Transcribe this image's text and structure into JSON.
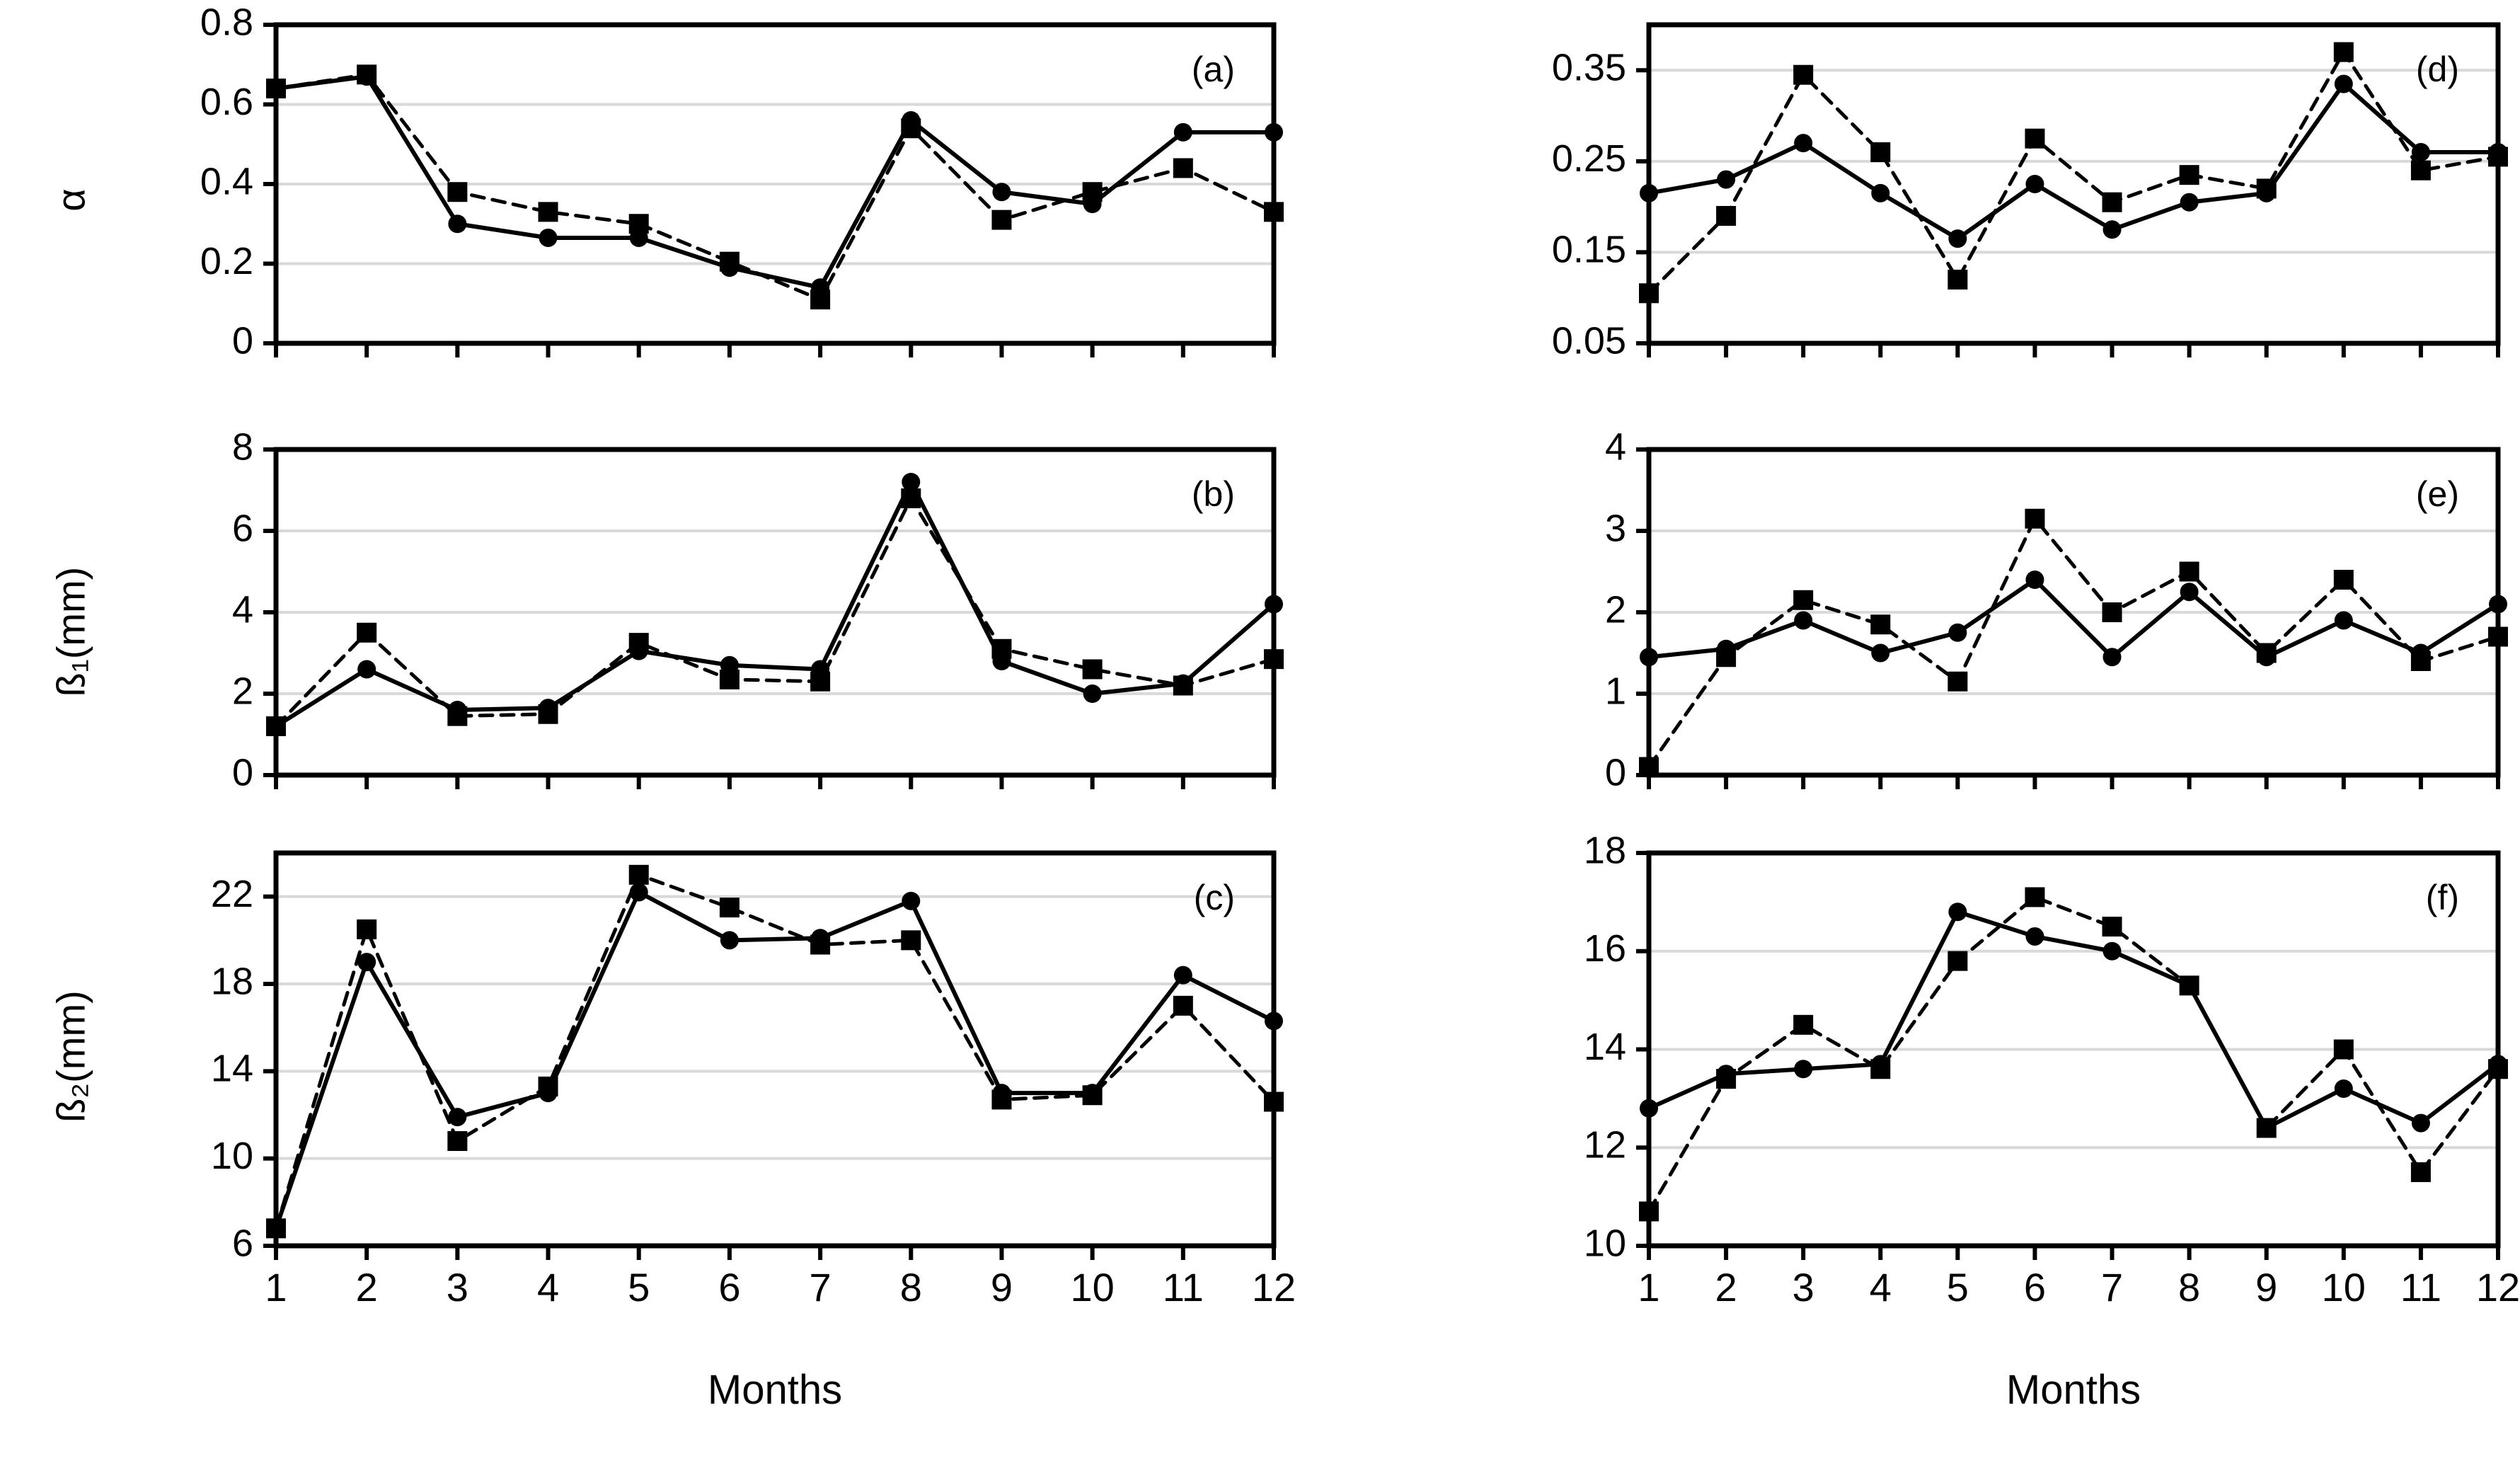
{
  "figure_background": "#ffffff",
  "colors": {
    "line": "#000000",
    "grid": "#d9d9d9",
    "frame": "#000000",
    "text": "#000000"
  },
  "chart_data": [
    {
      "id": "a",
      "type": "line",
      "annotation": "(a)",
      "ylabel": "α",
      "xlabel": "",
      "show_x_labels": false,
      "categories": [
        1,
        2,
        3,
        4,
        5,
        6,
        7,
        8,
        9,
        10,
        11,
        12
      ],
      "ylim": [
        0,
        0.8
      ],
      "ytick_values": [
        0,
        0.2,
        0.4,
        0.6,
        0.8
      ],
      "ytick_labels": [
        "0",
        "0.2",
        "0.4",
        "0.6",
        "0.8"
      ],
      "gridlines": [
        0.2,
        0.4,
        0.6
      ],
      "grid": "on",
      "legend": "none",
      "series": [
        {
          "name": "solid-circle",
          "line": "solid",
          "marker": "circle",
          "values": [
            0.64,
            0.67,
            0.3,
            0.265,
            0.265,
            0.19,
            0.14,
            0.56,
            0.38,
            0.35,
            0.53,
            0.53
          ]
        },
        {
          "name": "dashed-square",
          "line": "dashed",
          "marker": "square",
          "values": [
            0.64,
            0.675,
            0.38,
            0.33,
            0.3,
            0.205,
            0.11,
            0.54,
            0.31,
            0.38,
            0.44,
            0.33
          ]
        }
      ]
    },
    {
      "id": "d",
      "type": "line",
      "annotation": "(d)",
      "ylabel": "",
      "xlabel": "",
      "show_x_labels": false,
      "categories": [
        1,
        2,
        3,
        4,
        5,
        6,
        7,
        8,
        9,
        10,
        11,
        12
      ],
      "ylim": [
        0.05,
        0.4
      ],
      "ytick_values": [
        0.05,
        0.15,
        0.25,
        0.35
      ],
      "ytick_labels": [
        "0.05",
        "0.15",
        "0.25",
        "0.35"
      ],
      "gridlines": [
        0.15,
        0.25,
        0.35
      ],
      "grid": "on",
      "legend": "none",
      "series": [
        {
          "name": "solid-circle",
          "line": "solid",
          "marker": "circle",
          "values": [
            0.215,
            0.23,
            0.27,
            0.215,
            0.165,
            0.225,
            0.175,
            0.205,
            0.215,
            0.335,
            0.26,
            0.26
          ]
        },
        {
          "name": "dashed-square",
          "line": "dashed",
          "marker": "square",
          "values": [
            0.105,
            0.19,
            0.345,
            0.26,
            0.12,
            0.275,
            0.205,
            0.235,
            0.22,
            0.37,
            0.24,
            0.255
          ]
        }
      ]
    },
    {
      "id": "b",
      "type": "line",
      "annotation": "(b)",
      "ylabel": "ß₁(mm)",
      "xlabel": "",
      "show_x_labels": false,
      "categories": [
        1,
        2,
        3,
        4,
        5,
        6,
        7,
        8,
        9,
        10,
        11,
        12
      ],
      "ylim": [
        0,
        8
      ],
      "ytick_values": [
        0,
        2,
        4,
        6,
        8
      ],
      "ytick_labels": [
        "0",
        "2",
        "4",
        "6",
        "8"
      ],
      "gridlines": [
        2,
        4,
        6
      ],
      "grid": "on",
      "legend": "none",
      "series": [
        {
          "name": "solid-circle",
          "line": "solid",
          "marker": "circle",
          "values": [
            1.2,
            2.6,
            1.6,
            1.65,
            3.05,
            2.7,
            2.6,
            7.2,
            2.8,
            2.0,
            2.25,
            4.2
          ]
        },
        {
          "name": "dashed-square",
          "line": "dashed",
          "marker": "square",
          "values": [
            1.2,
            3.5,
            1.45,
            1.5,
            3.25,
            2.35,
            2.3,
            6.8,
            3.1,
            2.6,
            2.2,
            2.85
          ]
        }
      ]
    },
    {
      "id": "e",
      "type": "line",
      "annotation": "(e)",
      "ylabel": "",
      "xlabel": "",
      "show_x_labels": false,
      "categories": [
        1,
        2,
        3,
        4,
        5,
        6,
        7,
        8,
        9,
        10,
        11,
        12
      ],
      "ylim": [
        0,
        4
      ],
      "ytick_values": [
        0,
        1,
        2,
        3,
        4
      ],
      "ytick_labels": [
        "0",
        "1",
        "2",
        "3",
        "4"
      ],
      "gridlines": [
        1,
        2,
        3
      ],
      "grid": "on",
      "legend": "none",
      "series": [
        {
          "name": "solid-circle",
          "line": "solid",
          "marker": "circle",
          "values": [
            1.45,
            1.55,
            1.9,
            1.5,
            1.75,
            2.4,
            1.45,
            2.25,
            1.45,
            1.9,
            1.5,
            2.1
          ]
        },
        {
          "name": "dashed-square",
          "line": "dashed",
          "marker": "square",
          "values": [
            0.1,
            1.45,
            2.15,
            1.85,
            1.15,
            3.15,
            2.0,
            2.5,
            1.5,
            2.4,
            1.4,
            1.7
          ]
        }
      ]
    },
    {
      "id": "c",
      "type": "line",
      "annotation": "(c)",
      "ylabel": "ß₂(mm)",
      "xlabel": "Months",
      "show_x_labels": true,
      "categories": [
        1,
        2,
        3,
        4,
        5,
        6,
        7,
        8,
        9,
        10,
        11,
        12
      ],
      "ylim": [
        6,
        24
      ],
      "ytick_values": [
        6,
        10,
        14,
        18,
        22
      ],
      "ytick_labels": [
        "6",
        "10",
        "14",
        "18",
        "22"
      ],
      "gridlines": [
        10,
        14,
        18,
        22
      ],
      "grid": "on",
      "legend": "none",
      "series": [
        {
          "name": "solid-circle",
          "line": "solid",
          "marker": "circle",
          "values": [
            6.8,
            19.0,
            11.9,
            13.0,
            22.2,
            20.0,
            20.1,
            21.8,
            13.0,
            13.0,
            18.4,
            16.3
          ]
        },
        {
          "name": "dashed-square",
          "line": "dashed",
          "marker": "square",
          "values": [
            6.8,
            20.5,
            10.8,
            13.3,
            23.0,
            21.5,
            19.8,
            20.0,
            12.7,
            12.9,
            17.0,
            12.6
          ]
        }
      ]
    },
    {
      "id": "f",
      "type": "line",
      "annotation": "(f)",
      "ylabel": "",
      "xlabel": "Months",
      "show_x_labels": true,
      "categories": [
        1,
        2,
        3,
        4,
        5,
        6,
        7,
        8,
        9,
        10,
        11,
        12
      ],
      "ylim": [
        10,
        18
      ],
      "ytick_values": [
        10,
        12,
        14,
        16,
        18
      ],
      "ytick_labels": [
        "10",
        "12",
        "14",
        "16",
        "18"
      ],
      "gridlines": [
        12,
        14,
        16
      ],
      "grid": "on",
      "legend": "none",
      "series": [
        {
          "name": "solid-circle",
          "line": "solid",
          "marker": "circle",
          "values": [
            12.8,
            13.5,
            13.6,
            13.7,
            16.8,
            16.3,
            16.0,
            15.3,
            12.4,
            13.2,
            12.5,
            13.7
          ]
        },
        {
          "name": "dashed-square",
          "line": "dashed",
          "marker": "square",
          "values": [
            10.7,
            13.4,
            14.5,
            13.6,
            15.8,
            17.1,
            16.5,
            15.3,
            12.4,
            14.0,
            11.5,
            13.6
          ]
        }
      ]
    }
  ]
}
